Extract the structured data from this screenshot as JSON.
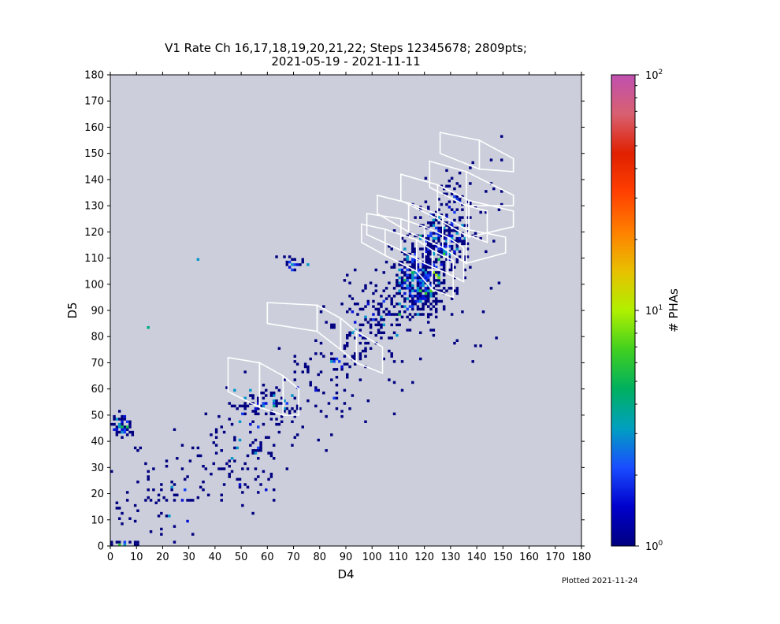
{
  "chart_data": {
    "type": "heatmap",
    "title": "V1 Rate Ch 16,17,18,19,20,21,22; Steps 12345678; 2809pts;",
    "subtitle": "2021-05-19 - 2021-11-11",
    "xlabel": "D4",
    "ylabel": "D5",
    "xlim": [
      0,
      180
    ],
    "ylim": [
      0,
      180
    ],
    "xticks": [
      0,
      10,
      20,
      30,
      40,
      50,
      60,
      70,
      80,
      90,
      100,
      110,
      120,
      130,
      140,
      150,
      160,
      170,
      180
    ],
    "yticks": [
      0,
      10,
      20,
      30,
      40,
      50,
      60,
      70,
      80,
      90,
      100,
      110,
      120,
      130,
      140,
      150,
      160,
      170,
      180
    ],
    "background_color": "#cccfdb",
    "colorbar": {
      "label": "# PHAs",
      "scale": "log",
      "range": [
        1,
        100
      ],
      "tick_labels": [
        {
          "base": "10",
          "exp": "0",
          "value": 1
        },
        {
          "base": "10",
          "exp": "1",
          "value": 10
        },
        {
          "base": "10",
          "exp": "2",
          "value": 100
        }
      ],
      "colormap": [
        "#000080",
        "#0000cc",
        "#1a4dff",
        "#00a0c0",
        "#00b060",
        "#40d020",
        "#b0f000",
        "#e8c000",
        "#ff8000",
        "#ff4000",
        "#e02000",
        "#d86070",
        "#c050b0"
      ]
    },
    "clusters": [
      {
        "x": 118,
        "y": 100,
        "sx": 6,
        "sy": 7,
        "n": 420,
        "level": 1.3
      },
      {
        "x": 125,
        "y": 115,
        "sx": 5,
        "sy": 7,
        "n": 170,
        "level": 1.2
      },
      {
        "x": 130,
        "y": 120,
        "sx": 4,
        "sy": 6,
        "n": 90,
        "level": 1.1
      },
      {
        "x": 100,
        "y": 85,
        "sx": 6,
        "sy": 7,
        "n": 90,
        "level": 1.0
      },
      {
        "x": 85,
        "y": 65,
        "sx": 8,
        "sy": 10,
        "n": 70,
        "level": 0.9
      },
      {
        "x": 60,
        "y": 54,
        "sx": 6,
        "sy": 4,
        "n": 80,
        "level": 1.2
      },
      {
        "x": 50,
        "y": 35,
        "sx": 9,
        "sy": 9,
        "n": 90,
        "level": 0.9
      },
      {
        "x": 70,
        "y": 108,
        "sx": 3,
        "sy": 2,
        "n": 22,
        "level": 1.0
      },
      {
        "x": 4,
        "y": 46,
        "sx": 2,
        "sy": 2.5,
        "n": 60,
        "level": 1.4
      },
      {
        "x": 5,
        "y": 1,
        "sx": 3,
        "sy": 0.6,
        "n": 25,
        "level": 1.2
      },
      {
        "x": 25,
        "y": 20,
        "sx": 10,
        "sy": 10,
        "n": 50,
        "level": 0.7
      },
      {
        "x": 133,
        "y": 135,
        "sx": 4,
        "sy": 5,
        "n": 25,
        "level": 0.8
      }
    ],
    "hot_spots": [
      {
        "x": 123,
        "y": 104,
        "v": 9
      },
      {
        "x": 124,
        "y": 103,
        "v": 10
      },
      {
        "x": 125,
        "y": 102,
        "v": 8
      },
      {
        "x": 122,
        "y": 97,
        "v": 7
      },
      {
        "x": 118,
        "y": 97,
        "v": 6
      },
      {
        "x": 120,
        "y": 96,
        "v": 6
      },
      {
        "x": 112,
        "y": 101,
        "v": 5
      },
      {
        "x": 115,
        "y": 104,
        "v": 5
      },
      {
        "x": 127,
        "y": 111,
        "v": 6
      },
      {
        "x": 125,
        "y": 109,
        "v": 5
      },
      {
        "x": 110,
        "y": 88,
        "v": 5
      },
      {
        "x": 4,
        "y": 45,
        "v": 5
      },
      {
        "x": 6,
        "y": 45,
        "v": 5
      },
      {
        "x": 3,
        "y": 0.5,
        "v": 6
      },
      {
        "x": 14,
        "y": 83,
        "v": 4
      },
      {
        "x": 33,
        "y": 109,
        "v": 3
      },
      {
        "x": 118,
        "y": 118,
        "v": 4
      },
      {
        "x": 62,
        "y": 53,
        "v": 4
      }
    ],
    "polygons": [
      [
        [
          45,
          72
        ],
        [
          57,
          70
        ],
        [
          57,
          53
        ],
        [
          45,
          59
        ]
      ],
      [
        [
          57,
          70
        ],
        [
          66,
          65
        ],
        [
          66,
          50
        ],
        [
          57,
          53
        ]
      ],
      [
        [
          66,
          65
        ],
        [
          72,
          60
        ],
        [
          72,
          50
        ],
        [
          66,
          50
        ]
      ],
      [
        [
          60,
          93
        ],
        [
          79,
          92
        ],
        [
          79,
          82
        ],
        [
          60,
          85
        ]
      ],
      [
        [
          79,
          92
        ],
        [
          88,
          87
        ],
        [
          88,
          75
        ],
        [
          79,
          82
        ]
      ],
      [
        [
          88,
          87
        ],
        [
          94,
          82
        ],
        [
          94,
          70
        ],
        [
          88,
          75
        ]
      ],
      [
        [
          94,
          82
        ],
        [
          104,
          76
        ],
        [
          104,
          66
        ],
        [
          94,
          70
        ]
      ],
      [
        [
          96,
          123
        ],
        [
          105,
          121
        ],
        [
          105,
          111
        ],
        [
          96,
          116
        ]
      ],
      [
        [
          98,
          127
        ],
        [
          111,
          125
        ],
        [
          111,
          113
        ],
        [
          98,
          119
        ]
      ],
      [
        [
          105,
          121
        ],
        [
          117,
          117
        ],
        [
          117,
          105
        ],
        [
          105,
          111
        ]
      ],
      [
        [
          102,
          134
        ],
        [
          114,
          131
        ],
        [
          114,
          120
        ],
        [
          102,
          127
        ]
      ],
      [
        [
          111,
          125
        ],
        [
          120,
          122
        ],
        [
          120,
          108
        ],
        [
          111,
          113
        ]
      ],
      [
        [
          117,
          117
        ],
        [
          123,
          113
        ],
        [
          123,
          98
        ],
        [
          117,
          105
        ]
      ],
      [
        [
          111,
          142
        ],
        [
          125,
          138
        ],
        [
          125,
          125
        ],
        [
          111,
          132
        ]
      ],
      [
        [
          114,
          131
        ],
        [
          127,
          126
        ],
        [
          127,
          114
        ],
        [
          114,
          120
        ]
      ],
      [
        [
          120,
          122
        ],
        [
          129,
          118
        ],
        [
          129,
          104
        ],
        [
          120,
          108
        ]
      ],
      [
        [
          123,
          113
        ],
        [
          131,
          109
        ],
        [
          131,
          95
        ],
        [
          123,
          98
        ]
      ],
      [
        [
          122,
          147
        ],
        [
          136,
          143
        ],
        [
          136,
          130
        ],
        [
          122,
          137
        ]
      ],
      [
        [
          125,
          138
        ],
        [
          137,
          132
        ],
        [
          137,
          118
        ],
        [
          125,
          125
        ]
      ],
      [
        [
          127,
          126
        ],
        [
          136,
          121
        ],
        [
          136,
          108
        ],
        [
          127,
          114
        ]
      ],
      [
        [
          129,
          118
        ],
        [
          135,
          114
        ],
        [
          135,
          101
        ],
        [
          129,
          104
        ]
      ],
      [
        [
          126,
          158
        ],
        [
          141,
          155
        ],
        [
          141,
          144
        ],
        [
          126,
          150
        ]
      ],
      [
        [
          141,
          155
        ],
        [
          154,
          148
        ],
        [
          154,
          143
        ],
        [
          141,
          144
        ]
      ],
      [
        [
          136,
          143
        ],
        [
          154,
          134
        ],
        [
          154,
          130
        ],
        [
          136,
          130
        ]
      ],
      [
        [
          137,
          132
        ],
        [
          154,
          128
        ],
        [
          154,
          122
        ],
        [
          137,
          118
        ]
      ],
      [
        [
          136,
          121
        ],
        [
          151,
          118
        ],
        [
          151,
          112
        ],
        [
          136,
          108
        ]
      ],
      [
        [
          136,
          130
        ],
        [
          144,
          128
        ],
        [
          144,
          116
        ],
        [
          136,
          119
        ]
      ]
    ]
  },
  "footnote": "Plotted 2021-11-24"
}
